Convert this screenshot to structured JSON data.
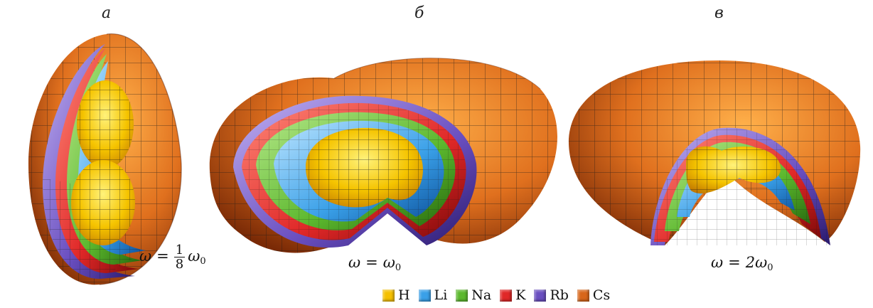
{
  "panels": [
    {
      "letter": "а",
      "formula_lhs": "ω",
      "formula_eq": "=",
      "frac_num": "1",
      "frac_den": "8",
      "formula_rhs": "ω",
      "formula_sub": "0"
    },
    {
      "letter": "б",
      "formula_lhs": "ω",
      "formula_eq": "=",
      "formula_rhs": "ω",
      "formula_sub": "0"
    },
    {
      "letter": "в",
      "formula_lhs": "ω",
      "formula_eq": "=",
      "formula_rhs": "2ω",
      "formula_sub": "0"
    }
  ],
  "legend": [
    {
      "label": "H",
      "color": "#f5c000"
    },
    {
      "label": "Li",
      "color": "#3aa0e8"
    },
    {
      "label": "Na",
      "color": "#5cb82e"
    },
    {
      "label": "K",
      "color": "#e02828"
    },
    {
      "label": "Rb",
      "color": "#6a4fc0"
    },
    {
      "label": "Cs",
      "color": "#d8661a"
    }
  ],
  "colors": {
    "H": "#f5c400",
    "Li": "#3aa0e8",
    "Na": "#5cb82e",
    "K": "#e02828",
    "Rb": "#6a4fc0",
    "Cs": "#e07020",
    "mesh": "#1a1a1a"
  }
}
